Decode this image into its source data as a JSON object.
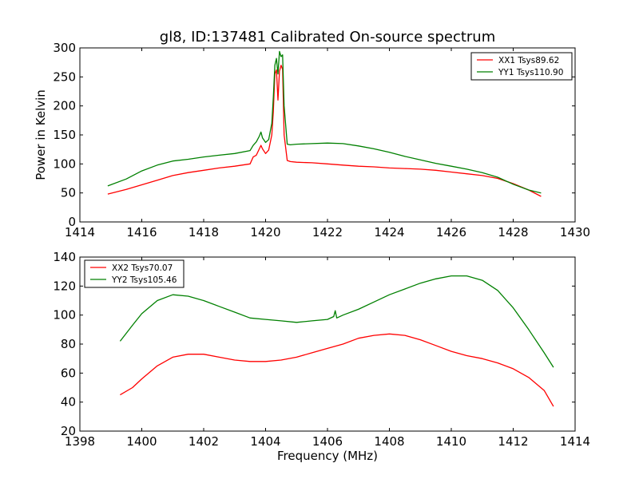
{
  "colors": {
    "red": "#ff0000",
    "green": "#008000",
    "axes": "#000000",
    "background": "#ffffff"
  },
  "chart_data": [
    {
      "type": "line",
      "title": "gl8, ID:137481 Calibrated On-source spectrum",
      "xlabel": "",
      "ylabel": "Power in Kelvin",
      "xlim": [
        1414,
        1430
      ],
      "ylim": [
        0,
        300
      ],
      "xticks": [
        "1414",
        "1416",
        "1418",
        "1420",
        "1422",
        "1424",
        "1426",
        "1428",
        "1430"
      ],
      "yticks": [
        "0",
        "50",
        "100",
        "150",
        "200",
        "250",
        "300"
      ],
      "legend_position": "top-right",
      "grid": false,
      "series": [
        {
          "name": "XX1 Tsys89.62",
          "color": "#ff0000",
          "points": [
            [
              1414.9,
              48
            ],
            [
              1415.5,
              56
            ],
            [
              1416.0,
              64
            ],
            [
              1416.5,
              72
            ],
            [
              1417.0,
              80
            ],
            [
              1417.5,
              85
            ],
            [
              1418.0,
              89
            ],
            [
              1418.5,
              93
            ],
            [
              1419.0,
              96
            ],
            [
              1419.5,
              100
            ],
            [
              1419.6,
              112
            ],
            [
              1419.7,
              115
            ],
            [
              1419.8,
              126
            ],
            [
              1419.85,
              132
            ],
            [
              1419.9,
              126
            ],
            [
              1420.0,
              118
            ],
            [
              1420.1,
              124
            ],
            [
              1420.2,
              150
            ],
            [
              1420.25,
              190
            ],
            [
              1420.3,
              255
            ],
            [
              1420.35,
              262
            ],
            [
              1420.4,
              210
            ],
            [
              1420.45,
              260
            ],
            [
              1420.5,
              270
            ],
            [
              1420.55,
              263
            ],
            [
              1420.6,
              150
            ],
            [
              1420.7,
              106
            ],
            [
              1420.8,
              104
            ],
            [
              1421.0,
              103
            ],
            [
              1421.5,
              102
            ],
            [
              1422.0,
              100
            ],
            [
              1422.5,
              98
            ],
            [
              1423.0,
              96
            ],
            [
              1423.5,
              95
            ],
            [
              1424.0,
              93
            ],
            [
              1424.5,
              92
            ],
            [
              1425.0,
              91
            ],
            [
              1425.5,
              89
            ],
            [
              1426.0,
              86
            ],
            [
              1426.5,
              83
            ],
            [
              1427.0,
              80
            ],
            [
              1427.5,
              75
            ],
            [
              1428.0,
              66
            ],
            [
              1428.5,
              55
            ],
            [
              1428.9,
              44
            ]
          ]
        },
        {
          "name": "YY1 Tsys110.90",
          "color": "#008000",
          "points": [
            [
              1414.9,
              62
            ],
            [
              1415.5,
              74
            ],
            [
              1416.0,
              88
            ],
            [
              1416.5,
              98
            ],
            [
              1417.0,
              105
            ],
            [
              1417.5,
              108
            ],
            [
              1418.0,
              112
            ],
            [
              1418.5,
              115
            ],
            [
              1419.0,
              118
            ],
            [
              1419.5,
              123
            ],
            [
              1419.6,
              132
            ],
            [
              1419.7,
              138
            ],
            [
              1419.8,
              148
            ],
            [
              1419.85,
              155
            ],
            [
              1419.9,
              145
            ],
            [
              1420.0,
              137
            ],
            [
              1420.1,
              142
            ],
            [
              1420.2,
              170
            ],
            [
              1420.25,
              215
            ],
            [
              1420.3,
              270
            ],
            [
              1420.35,
              282
            ],
            [
              1420.4,
              255
            ],
            [
              1420.45,
              294
            ],
            [
              1420.5,
              285
            ],
            [
              1420.55,
              288
            ],
            [
              1420.6,
              200
            ],
            [
              1420.7,
              134
            ],
            [
              1420.8,
              133
            ],
            [
              1421.0,
              134
            ],
            [
              1421.5,
              135
            ],
            [
              1422.0,
              136
            ],
            [
              1422.5,
              135
            ],
            [
              1423.0,
              131
            ],
            [
              1423.5,
              126
            ],
            [
              1424.0,
              120
            ],
            [
              1424.5,
              113
            ],
            [
              1425.0,
              107
            ],
            [
              1425.5,
              101
            ],
            [
              1426.0,
              96
            ],
            [
              1426.5,
              91
            ],
            [
              1427.0,
              85
            ],
            [
              1427.5,
              77
            ],
            [
              1428.0,
              65
            ],
            [
              1428.5,
              55
            ],
            [
              1428.9,
              50
            ]
          ]
        }
      ]
    },
    {
      "type": "line",
      "title": "",
      "xlabel": "Frequency (MHz)",
      "ylabel": "",
      "xlim": [
        1398,
        1414
      ],
      "ylim": [
        20,
        140
      ],
      "xticks": [
        "1398",
        "1400",
        "1402",
        "1404",
        "1406",
        "1408",
        "1410",
        "1412",
        "1414"
      ],
      "yticks": [
        "20",
        "40",
        "60",
        "80",
        "100",
        "120",
        "140"
      ],
      "legend_position": "top-left",
      "grid": false,
      "series": [
        {
          "name": "XX2 Tsys70.07",
          "color": "#ff0000",
          "points": [
            [
              1399.3,
              45
            ],
            [
              1399.7,
              50
            ],
            [
              1400.0,
              56
            ],
            [
              1400.5,
              65
            ],
            [
              1401.0,
              71
            ],
            [
              1401.5,
              73
            ],
            [
              1402.0,
              73
            ],
            [
              1402.5,
              71
            ],
            [
              1403.0,
              69
            ],
            [
              1403.5,
              68
            ],
            [
              1404.0,
              68
            ],
            [
              1404.5,
              69
            ],
            [
              1405.0,
              71
            ],
            [
              1405.5,
              74
            ],
            [
              1406.0,
              77
            ],
            [
              1406.5,
              80
            ],
            [
              1407.0,
              84
            ],
            [
              1407.5,
              86
            ],
            [
              1408.0,
              87
            ],
            [
              1408.5,
              86
            ],
            [
              1409.0,
              83
            ],
            [
              1409.5,
              79
            ],
            [
              1410.0,
              75
            ],
            [
              1410.5,
              72
            ],
            [
              1411.0,
              70
            ],
            [
              1411.5,
              67
            ],
            [
              1412.0,
              63
            ],
            [
              1412.5,
              57
            ],
            [
              1413.0,
              48
            ],
            [
              1413.3,
              37
            ]
          ]
        },
        {
          "name": "YY2 Tsys105.46",
          "color": "#008000",
          "points": [
            [
              1399.3,
              82
            ],
            [
              1399.7,
              93
            ],
            [
              1400.0,
              101
            ],
            [
              1400.5,
              110
            ],
            [
              1401.0,
              114
            ],
            [
              1401.5,
              113
            ],
            [
              1402.0,
              110
            ],
            [
              1402.5,
              106
            ],
            [
              1403.0,
              102
            ],
            [
              1403.5,
              98
            ],
            [
              1404.0,
              97
            ],
            [
              1404.5,
              96
            ],
            [
              1405.0,
              95
            ],
            [
              1405.5,
              96
            ],
            [
              1406.0,
              97
            ],
            [
              1406.2,
              99
            ],
            [
              1406.25,
              103
            ],
            [
              1406.3,
              98
            ],
            [
              1406.5,
              100
            ],
            [
              1407.0,
              104
            ],
            [
              1407.5,
              109
            ],
            [
              1408.0,
              114
            ],
            [
              1408.5,
              118
            ],
            [
              1409.0,
              122
            ],
            [
              1409.5,
              125
            ],
            [
              1410.0,
              127
            ],
            [
              1410.5,
              127
            ],
            [
              1411.0,
              124
            ],
            [
              1411.5,
              117
            ],
            [
              1412.0,
              105
            ],
            [
              1412.5,
              90
            ],
            [
              1413.0,
              74
            ],
            [
              1413.3,
              64
            ]
          ]
        }
      ]
    }
  ]
}
